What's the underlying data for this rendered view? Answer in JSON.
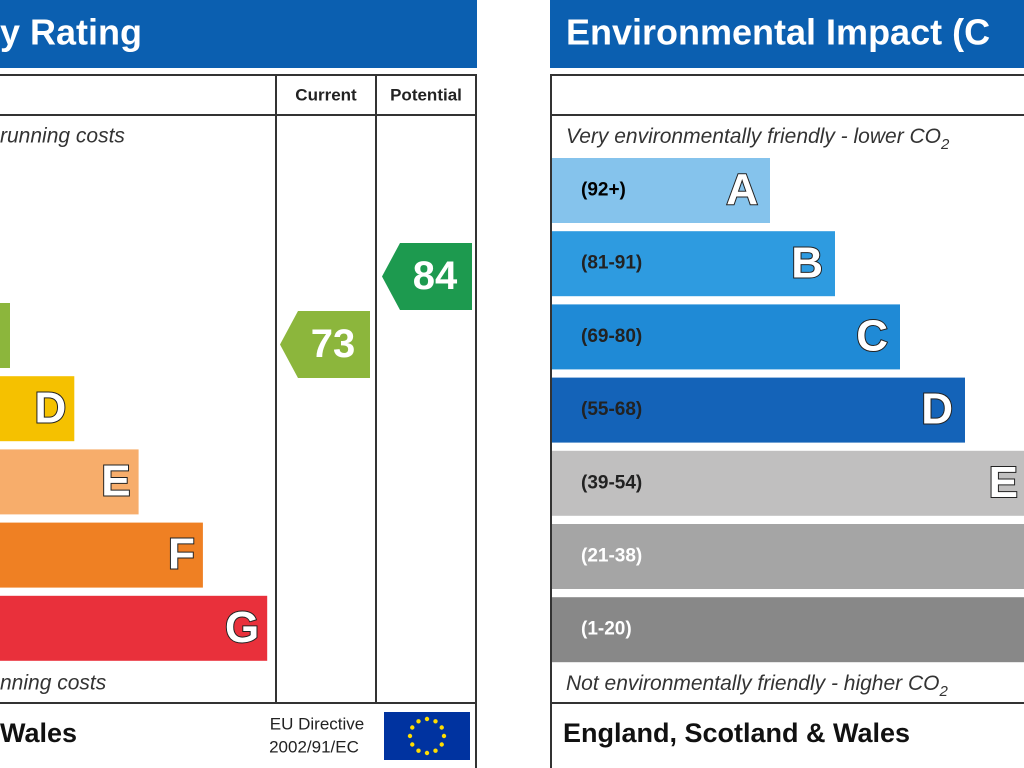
{
  "left": {
    "title": "y Rating",
    "header": {
      "current": "Current",
      "potential": "Potential"
    },
    "top_note": "running costs",
    "bottom_note": "nning costs",
    "bands": [
      {
        "color": "#8cb63c"
      },
      {
        "letter": "D",
        "color": "#f5c100"
      },
      {
        "letter": "E",
        "color": "#f7ad6b"
      },
      {
        "letter": "F",
        "color": "#ef8023"
      },
      {
        "letter": "G",
        "color": "#e9303b"
      }
    ],
    "current": {
      "value": 73,
      "color": "#8cb63c"
    },
    "potential": {
      "value": 84,
      "color": "#1d9a4f"
    },
    "footer": {
      "region": "Wales",
      "directive": [
        "EU Directive",
        "2002/91/EC"
      ]
    }
  },
  "right": {
    "title": "Environmental Impact (C",
    "top_note": "Very environmentally friendly - lower CO",
    "top_note_sub": "2",
    "bottom_note": "Not environmentally friendly - higher CO",
    "bottom_note_sub": "2",
    "bands": [
      {
        "range": "(92+)",
        "letter": "A",
        "color": "#85c3ec",
        "text": "#000"
      },
      {
        "range": "(81-91)",
        "letter": "B",
        "color": "#2e9be0",
        "text": "#222"
      },
      {
        "range": "(69-80)",
        "letter": "C",
        "color": "#1f8ad6",
        "text": "#222"
      },
      {
        "range": "(55-68)",
        "letter": "D",
        "color": "#1463b8",
        "text": "#222"
      },
      {
        "range": "(39-54)",
        "letter": "E",
        "color": "#c0bfbf",
        "text": "#222"
      },
      {
        "range": "(21-38)",
        "color": "#a5a5a5",
        "text": "#fff"
      },
      {
        "range": "(1-20)",
        "color": "#888888",
        "text": "#fff"
      }
    ],
    "footer": {
      "region": "England, Scotland & Wales"
    }
  }
}
